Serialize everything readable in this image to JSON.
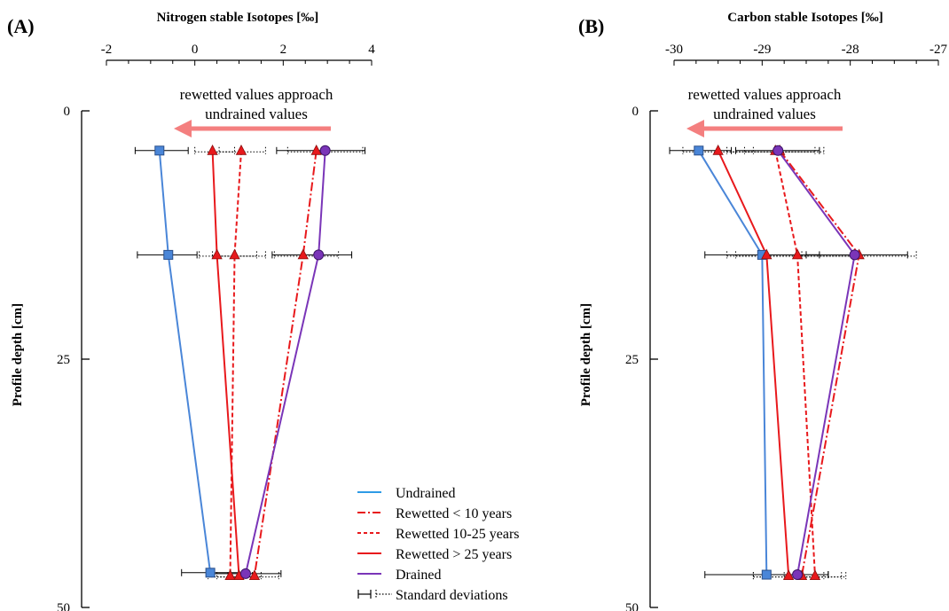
{
  "chart_data": [
    {
      "type": "line",
      "panel_label": "(A)",
      "xlabel": "Nitrogen stable Isotopes [‰]",
      "ylabel": "Profile depth  [cm]",
      "xlim": [
        -2,
        4
      ],
      "ylim": [
        0,
        50
      ],
      "x_axis_position": "top",
      "y_inverted": true,
      "xticks": [
        "-2",
        "0",
        "2",
        "4"
      ],
      "yticks": [
        "0",
        "25",
        "50"
      ],
      "annotation": [
        "rewetted values approach",
        "undrained values"
      ],
      "series": [
        {
          "key": "undrained",
          "color": "#4a86d8",
          "dash": "solid",
          "marker": "square",
          "points": [
            [
              -0.8,
              4
            ],
            [
              -0.6,
              14.5
            ],
            [
              0.35,
              46.5
            ]
          ],
          "sd": [
            [
              -1.35,
              -0.15
            ],
            [
              -1.3,
              0.05
            ],
            [
              -0.3,
              1.0
            ]
          ]
        },
        {
          "key": "rewetted_lt10",
          "color": "#e8191c",
          "dash": "dashdot",
          "marker": "triangle",
          "points": [
            [
              2.75,
              4
            ],
            [
              2.45,
              14.5
            ],
            [
              1.35,
              46.8
            ]
          ],
          "sd": [
            [
              2.1,
              3.8
            ],
            [
              1.8,
              3.25
            ],
            [
              0.75,
              1.9
            ]
          ]
        },
        {
          "key": "rewetted_10_25",
          "color": "#e8191c",
          "dash": "dashed",
          "marker": "triangle",
          "points": [
            [
              1.05,
              4
            ],
            [
              0.9,
              14.5
            ],
            [
              0.8,
              46.8
            ]
          ],
          "sd": [
            [
              0.55,
              1.6
            ],
            [
              0.4,
              1.4
            ],
            [
              0.3,
              1.3
            ]
          ]
        },
        {
          "key": "rewetted_gt25",
          "color": "#e8191c",
          "dash": "solid",
          "marker": "triangle",
          "points": [
            [
              0.4,
              4
            ],
            [
              0.5,
              14.5
            ],
            [
              1.0,
              46.8
            ]
          ],
          "sd": [
            [
              0.0,
              0.9
            ],
            [
              0.1,
              1.6
            ],
            [
              0.5,
              1.5
            ]
          ]
        },
        {
          "key": "drained",
          "color": "#7a35b8",
          "dash": "solid",
          "marker": "circle",
          "points": [
            [
              2.95,
              4
            ],
            [
              2.8,
              14.5
            ],
            [
              1.15,
              46.6
            ]
          ],
          "sd": [
            [
              1.85,
              3.85
            ],
            [
              1.75,
              3.55
            ],
            [
              0.3,
              1.95
            ]
          ]
        }
      ]
    },
    {
      "type": "line",
      "panel_label": "(B)",
      "xlabel": "Carbon stable Isotopes [‰]",
      "ylabel": "Profile depth  [cm]",
      "xlim": [
        -30,
        -27
      ],
      "ylim": [
        0,
        50
      ],
      "x_axis_position": "top",
      "y_inverted": true,
      "xticks": [
        "-30",
        "-29",
        "-28",
        "-27"
      ],
      "yticks": [
        "0",
        "25",
        "50"
      ],
      "annotation": [
        "rewetted values approach",
        "undrained values"
      ],
      "series": [
        {
          "key": "undrained",
          "color": "#4a86d8",
          "dash": "solid",
          "marker": "square",
          "points": [
            [
              -29.72,
              4
            ],
            [
              -29.0,
              14.5
            ],
            [
              -28.95,
              46.7
            ]
          ],
          "sd": [
            [
              -30.05,
              -29.35
            ],
            [
              -29.65,
              -28.35
            ],
            [
              -29.65,
              -28.25
            ]
          ]
        },
        {
          "key": "rewetted_lt10",
          "color": "#e8191c",
          "dash": "dashdot",
          "marker": "triangle",
          "points": [
            [
              -28.8,
              4
            ],
            [
              -27.9,
              14.5
            ],
            [
              -28.55,
              46.8
            ]
          ],
          "sd": [
            [
              -29.4,
              -28.3
            ],
            [
              -28.55,
              -27.25
            ],
            [
              -29.1,
              -28.1
            ]
          ]
        },
        {
          "key": "rewetted_10_25",
          "color": "#e8191c",
          "dash": "dashed",
          "marker": "triangle",
          "points": [
            [
              -28.85,
              4
            ],
            [
              -28.6,
              14.5
            ],
            [
              -28.4,
              46.8
            ]
          ],
          "sd": [
            [
              -29.2,
              -28.4
            ],
            [
              -29.3,
              -27.95
            ],
            [
              -28.75,
              -28.05
            ]
          ]
        },
        {
          "key": "rewetted_gt25",
          "color": "#e8191c",
          "dash": "solid",
          "marker": "triangle",
          "points": [
            [
              -29.5,
              4
            ],
            [
              -28.95,
              14.5
            ],
            [
              -28.7,
              46.8
            ]
          ],
          "sd": [
            [
              -29.9,
              -29.1
            ],
            [
              -29.4,
              -28.5
            ],
            [
              -29.1,
              -28.3
            ]
          ]
        },
        {
          "key": "drained",
          "color": "#7a35b8",
          "dash": "solid",
          "marker": "circle",
          "points": [
            [
              -28.82,
              4
            ],
            [
              -27.95,
              14.5
            ],
            [
              -28.6,
              46.7
            ]
          ],
          "sd": [
            [
              -29.3,
              -28.35
            ],
            [
              -28.5,
              -27.35
            ],
            [
              -28.95,
              -28.25
            ]
          ]
        }
      ]
    }
  ],
  "legend": {
    "placement": "bottom-right of panel A",
    "entries": [
      {
        "key": "undrained",
        "label": "Undrained",
        "color": "#2e9be6",
        "dash": "solid"
      },
      {
        "key": "rewetted_lt10",
        "label": "Rewetted < 10 years",
        "color": "#e8191c",
        "dash": "dashdot"
      },
      {
        "key": "rewetted_10_25",
        "label": "Rewetted 10-25 years",
        "color": "#e8191c",
        "dash": "dashed"
      },
      {
        "key": "rewetted_gt25",
        "label": "Rewetted > 25 years",
        "color": "#e8191c",
        "dash": "solid"
      },
      {
        "key": "drained",
        "label": "Drained",
        "color": "#7a35b8",
        "dash": "solid"
      },
      {
        "key": "sd",
        "label": "Standard deviations",
        "color": "#000000",
        "dash": "errorbars"
      }
    ]
  },
  "colors": {
    "arrow": "#f47f7f",
    "axis": "#000000"
  }
}
